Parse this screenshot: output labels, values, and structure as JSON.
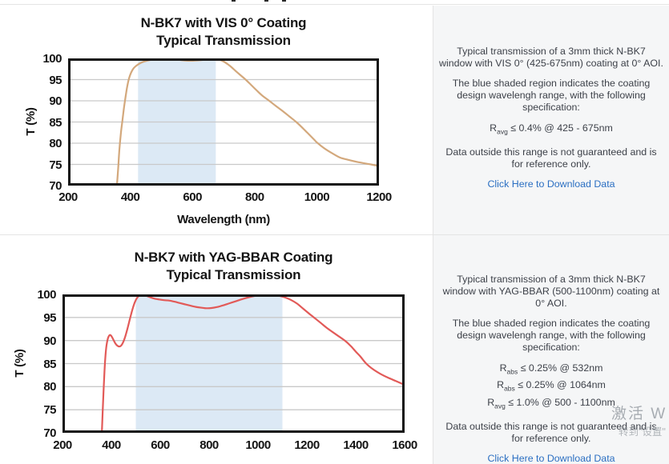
{
  "watermark": {
    "line1": "激活 W",
    "line2": "转到\"设置\""
  },
  "panels": [
    {
      "description": "Typical transmission of a 3mm thick N-BK7 window with VIS 0° (425-675nm) coating at 0° AOI.",
      "band_note": "The blue shaded region indicates the coating design wavelengh range, with the following specification:",
      "specs": [
        {
          "base": "R",
          "sub": "avg",
          "rest": "≤ 0.4% @ 425 - 675nm"
        }
      ],
      "disclaimer": "Data outside this range is not guaranteed and is for reference only.",
      "download_link": "Click Here to Download Data"
    },
    {
      "description": "Typical transmission of a 3mm thick N-BK7 window with YAG-BBAR (500-1100nm) coating at 0° AOI.",
      "band_note": "The blue shaded region indicates the coating design wavelengh range, with the following specification:",
      "specs": [
        {
          "base": "R",
          "sub": "abs",
          "rest": "≤ 0.25% @ 532nm"
        },
        {
          "base": "R",
          "sub": "abs",
          "rest": "≤ 0.25% @ 1064nm"
        },
        {
          "base": "R",
          "sub": "avg",
          "rest": "≤ 1.0% @ 500 - 1100nm"
        }
      ],
      "disclaimer": "Data outside this range is not guaranteed and is for reference only.",
      "download_link": "Click Here to Download Data"
    }
  ],
  "chart_data": [
    {
      "type": "line",
      "title": "N-BK7 with VIS 0° Coating",
      "subtitle": "Typical Transmission",
      "xlabel": "Wavelength (nm)",
      "ylabel": "T (%)",
      "xlim": [
        200,
        1200
      ],
      "ylim": [
        70,
        100
      ],
      "xticks": [
        200,
        400,
        600,
        800,
        1000,
        1200
      ],
      "yticks": [
        70,
        75,
        80,
        85,
        90,
        95,
        100
      ],
      "grid": "horizontal",
      "design_band_nm": [
        425,
        675
      ],
      "band_color": "#dce9f5",
      "line_color": "#d3a87c",
      "grid_color": "#c9c9c9",
      "frame_color": "#141414",
      "series": [
        {
          "name": "Typical Transmission",
          "points": [
            [
              357,
              70
            ],
            [
              361,
              74
            ],
            [
              365,
              78.5
            ],
            [
              370,
              82.5
            ],
            [
              375,
              85.5
            ],
            [
              380,
              88.5
            ],
            [
              385,
              91
            ],
            [
              390,
              93.3
            ],
            [
              396,
              95.3
            ],
            [
              403,
              96.7
            ],
            [
              411,
              97.7
            ],
            [
              420,
              98.3
            ],
            [
              430,
              98.8
            ],
            [
              442,
              99.2
            ],
            [
              456,
              99.5
            ],
            [
              472,
              99.7
            ],
            [
              490,
              99.8
            ],
            [
              510,
              99.9
            ],
            [
              530,
              99.85
            ],
            [
              552,
              99.7
            ],
            [
              575,
              99.5
            ],
            [
              598,
              99.45
            ],
            [
              620,
              99.55
            ],
            [
              642,
              99.7
            ],
            [
              662,
              99.8
            ],
            [
              678,
              99.85
            ],
            [
              690,
              99.6
            ],
            [
              702,
              99.2
            ],
            [
              714,
              98.6
            ],
            [
              726,
              97.9
            ],
            [
              738,
              97.1
            ],
            [
              752,
              96.2
            ],
            [
              771,
              95.0
            ],
            [
              788,
              93.8
            ],
            [
              806,
              92.5
            ],
            [
              825,
              91.2
            ],
            [
              847,
              90.0
            ],
            [
              868,
              88.8
            ],
            [
              890,
              87.6
            ],
            [
              912,
              86.3
            ],
            [
              934,
              85.0
            ],
            [
              950,
              83.9
            ],
            [
              965,
              82.8
            ],
            [
              980,
              81.7
            ],
            [
              992,
              80.8
            ],
            [
              1000,
              80.2
            ],
            [
              1015,
              79.3
            ],
            [
              1030,
              78.5
            ],
            [
              1050,
              77.6
            ],
            [
              1075,
              76.6
            ],
            [
              1100,
              76.1
            ],
            [
              1135,
              75.5
            ],
            [
              1174,
              75.0
            ],
            [
              1200,
              74.6
            ]
          ]
        }
      ]
    },
    {
      "type": "line",
      "title": "N-BK7 with YAG-BBAR Coating",
      "subtitle": "Typical Transmission",
      "xlabel": "",
      "ylabel": "T (%)",
      "xlim": [
        200,
        1600
      ],
      "ylim": [
        70,
        100
      ],
      "xticks": [
        200,
        400,
        600,
        800,
        1000,
        1200,
        1400,
        1600
      ],
      "yticks": [
        70,
        75,
        80,
        85,
        90,
        95,
        100
      ],
      "grid": "horizontal",
      "design_band_nm": [
        500,
        1100
      ],
      "band_color": "#dce9f5",
      "line_color": "#e25a58",
      "grid_color": "#c9c9c9",
      "frame_color": "#141414",
      "series": [
        {
          "name": "Typical Transmission",
          "points": [
            [
              361,
              70
            ],
            [
              364,
              74
            ],
            [
              368,
              79
            ],
            [
              372,
              83.5
            ],
            [
              376,
              86.8
            ],
            [
              380,
              88.9
            ],
            [
              385,
              90.3
            ],
            [
              390,
              91.0
            ],
            [
              395,
              91.2
            ],
            [
              401,
              90.9
            ],
            [
              408,
              90.2
            ],
            [
              416,
              89.4
            ],
            [
              424,
              88.9
            ],
            [
              432,
              88.7
            ],
            [
              440,
              88.9
            ],
            [
              448,
              89.6
            ],
            [
              457,
              90.9
            ],
            [
              466,
              92.6
            ],
            [
              476,
              94.7
            ],
            [
              486,
              96.7
            ],
            [
              496,
              98.3
            ],
            [
              506,
              99.3
            ],
            [
              516,
              99.8
            ],
            [
              528,
              99.9
            ],
            [
              542,
              99.7
            ],
            [
              558,
              99.4
            ],
            [
              575,
              99.1
            ],
            [
              595,
              98.9
            ],
            [
              615,
              98.75
            ],
            [
              638,
              98.65
            ],
            [
              660,
              98.4
            ],
            [
              682,
              98.1
            ],
            [
              705,
              97.8
            ],
            [
              728,
              97.5
            ],
            [
              750,
              97.25
            ],
            [
              770,
              97.1
            ],
            [
              790,
              97.0
            ],
            [
              810,
              97.05
            ],
            [
              832,
              97.25
            ],
            [
              856,
              97.6
            ],
            [
              882,
              98.05
            ],
            [
              908,
              98.5
            ],
            [
              934,
              98.95
            ],
            [
              960,
              99.35
            ],
            [
              985,
              99.65
            ],
            [
              1010,
              99.85
            ],
            [
              1035,
              99.95
            ],
            [
              1060,
              99.9
            ],
            [
              1085,
              99.7
            ],
            [
              1110,
              99.35
            ],
            [
              1135,
              98.8
            ],
            [
              1160,
              98.0
            ],
            [
              1185,
              96.9
            ],
            [
              1210,
              95.8
            ],
            [
              1229,
              95.0
            ],
            [
              1255,
              93.9
            ],
            [
              1285,
              92.6
            ],
            [
              1320,
              91.3
            ],
            [
              1355,
              90.0
            ],
            [
              1380,
              88.8
            ],
            [
              1400,
              87.6
            ],
            [
              1418,
              86.6
            ],
            [
              1443,
              85.0
            ],
            [
              1470,
              83.8
            ],
            [
              1500,
              82.8
            ],
            [
              1530,
              82.0
            ],
            [
              1565,
              81.2
            ],
            [
              1600,
              80.4
            ]
          ]
        }
      ]
    }
  ]
}
